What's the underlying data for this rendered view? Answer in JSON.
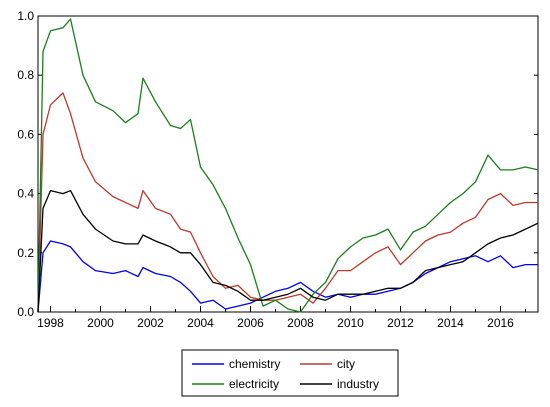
{
  "chart_data": {
    "type": "line",
    "title": "",
    "xlabel": "",
    "ylabel": "",
    "xlim": [
      1997.5,
      2017.5
    ],
    "ylim": [
      0.0,
      1.0
    ],
    "x_ticks": [
      "1998",
      "2000",
      "2002",
      "2004",
      "2006",
      "2008",
      "2010",
      "2012",
      "2014",
      "2016"
    ],
    "y_ticks": [
      "0.0",
      "0.2",
      "0.4",
      "0.6",
      "0.8",
      "1.0"
    ],
    "grid": false,
    "legend": "bottom-center",
    "x": [
      1997.5,
      1997.7,
      1998.0,
      1998.5,
      1998.8,
      1999.3,
      1999.8,
      2000.5,
      2001.0,
      2001.5,
      2001.7,
      2002.2,
      2002.8,
      2003.2,
      2003.6,
      2004.0,
      2004.5,
      2005.0,
      2005.5,
      2006.0,
      2006.5,
      2007.0,
      2007.5,
      2008.0,
      2008.5,
      2009.0,
      2009.5,
      2010.0,
      2010.5,
      2011.0,
      2011.5,
      2012.0,
      2012.5,
      2013.0,
      2013.5,
      2014.0,
      2014.5,
      2015.0,
      2015.5,
      2016.0,
      2016.5,
      2017.0,
      2017.5
    ],
    "series": [
      {
        "name": "chemistry",
        "color": "#0000ff",
        "values": [
          0.0,
          0.2,
          0.24,
          0.23,
          0.22,
          0.17,
          0.14,
          0.13,
          0.14,
          0.12,
          0.15,
          0.13,
          0.12,
          0.1,
          0.07,
          0.03,
          0.04,
          0.01,
          0.02,
          0.03,
          0.05,
          0.07,
          0.08,
          0.1,
          0.07,
          0.05,
          0.06,
          0.05,
          0.06,
          0.06,
          0.07,
          0.08,
          0.1,
          0.13,
          0.15,
          0.17,
          0.18,
          0.19,
          0.17,
          0.19,
          0.15,
          0.16,
          0.16
        ]
      },
      {
        "name": "city",
        "color": "#c0392b",
        "values": [
          0.0,
          0.6,
          0.7,
          0.74,
          0.67,
          0.52,
          0.44,
          0.39,
          0.37,
          0.35,
          0.41,
          0.35,
          0.33,
          0.28,
          0.27,
          0.2,
          0.12,
          0.08,
          0.09,
          0.05,
          0.04,
          0.04,
          0.05,
          0.06,
          0.03,
          0.08,
          0.14,
          0.14,
          0.17,
          0.2,
          0.22,
          0.16,
          0.2,
          0.24,
          0.26,
          0.27,
          0.3,
          0.32,
          0.38,
          0.4,
          0.36,
          0.37,
          0.37
        ]
      },
      {
        "name": "electricity",
        "color": "#1a7f1a",
        "values": [
          0.0,
          0.88,
          0.95,
          0.96,
          0.99,
          0.8,
          0.71,
          0.68,
          0.64,
          0.67,
          0.79,
          0.71,
          0.63,
          0.62,
          0.65,
          0.49,
          0.43,
          0.35,
          0.25,
          0.16,
          0.02,
          0.04,
          0.01,
          0.0,
          0.06,
          0.1,
          0.18,
          0.22,
          0.25,
          0.26,
          0.28,
          0.21,
          0.27,
          0.29,
          0.33,
          0.37,
          0.4,
          0.44,
          0.53,
          0.48,
          0.48,
          0.49,
          0.48
        ]
      },
      {
        "name": "industry",
        "color": "#000000",
        "values": [
          0.0,
          0.35,
          0.41,
          0.4,
          0.41,
          0.33,
          0.28,
          0.24,
          0.23,
          0.23,
          0.26,
          0.24,
          0.22,
          0.2,
          0.2,
          0.16,
          0.1,
          0.09,
          0.07,
          0.04,
          0.04,
          0.05,
          0.06,
          0.08,
          0.05,
          0.04,
          0.06,
          0.06,
          0.06,
          0.07,
          0.08,
          0.08,
          0.1,
          0.14,
          0.15,
          0.16,
          0.17,
          0.2,
          0.23,
          0.25,
          0.26,
          0.28,
          0.3
        ]
      }
    ]
  }
}
